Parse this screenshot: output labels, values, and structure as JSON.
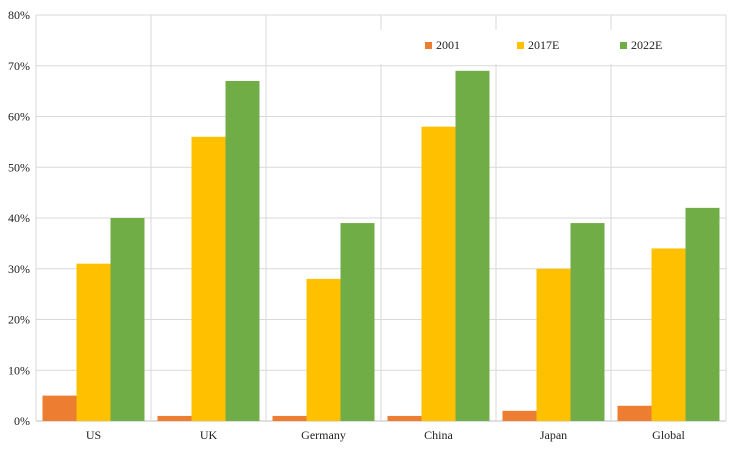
{
  "chart_data": {
    "type": "bar",
    "categories": [
      "US",
      "UK",
      "Germany",
      "China",
      "Japan",
      "Global"
    ],
    "series": [
      {
        "name": "2001",
        "values": [
          5,
          1,
          1,
          1,
          2,
          3
        ],
        "color": "#ED7D31"
      },
      {
        "name": "2017E",
        "values": [
          31,
          56,
          28,
          58,
          30,
          34
        ],
        "color": "#FFC000"
      },
      {
        "name": "2022E",
        "values": [
          40,
          67,
          39,
          69,
          39,
          42
        ],
        "color": "#70AD47"
      }
    ],
    "ylim": [
      0,
      80
    ],
    "yticks": [
      0,
      10,
      20,
      30,
      40,
      50,
      60,
      70,
      80
    ],
    "y_tick_labels": [
      "0%",
      "10%",
      "20%",
      "30%",
      "40%",
      "50%",
      "60%",
      "70%",
      "80%"
    ],
    "y_unit": "%",
    "grid": true,
    "legend": "top-right",
    "title": "",
    "xlabel": "",
    "ylabel": ""
  }
}
